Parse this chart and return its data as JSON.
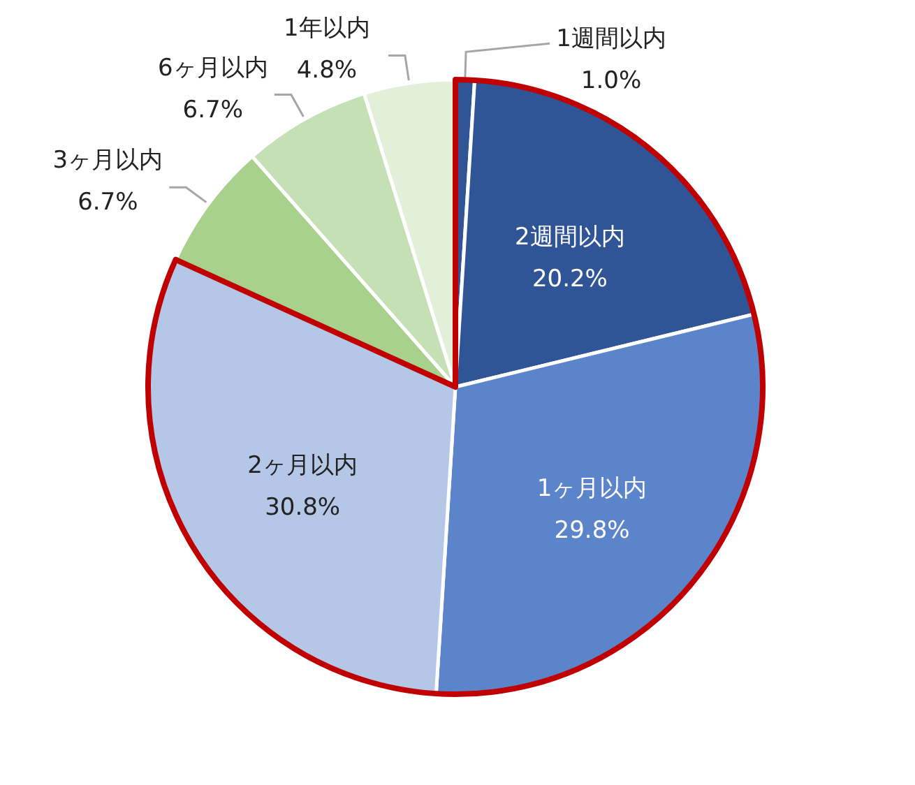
{
  "chart_data": {
    "type": "pie",
    "categories": [
      "1週間以内",
      "2週間以内",
      "1ヶ月以内",
      "2ヶ月以内",
      "3ヶ月以内",
      "6ヶ月以内",
      "1年以内"
    ],
    "values": [
      1.0,
      20.2,
      29.8,
      30.8,
      6.7,
      6.7,
      4.8
    ],
    "value_labels": [
      "1.0%",
      "20.2%",
      "29.8%",
      "30.8%",
      "6.7%",
      "6.7%",
      "4.8%"
    ],
    "colors": [
      "#2f5597",
      "#2f5597",
      "#5b84cb",
      "#b4c7e7",
      "#a9d18e",
      "#c5e0b4",
      "#e2efd9"
    ],
    "legend": false
  }
}
